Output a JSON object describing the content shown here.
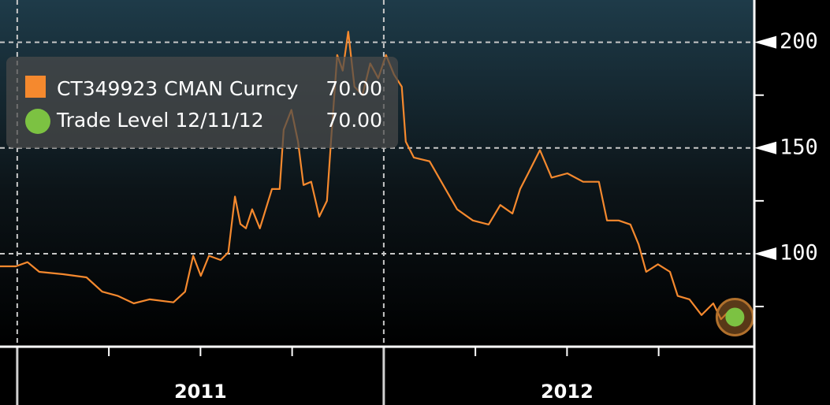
{
  "chart_data": {
    "type": "line",
    "series": [
      {
        "name": "CT349923 CMAN Curncy",
        "color": "#f5892e",
        "last_value_label": "70.00",
        "x": [
          2010.953,
          2010.996,
          2011.028,
          2011.06,
          2011.125,
          2011.189,
          2011.232,
          2011.275,
          2011.318,
          2011.361,
          2011.426,
          2011.458,
          2011.48,
          2011.501,
          2011.523,
          2011.555,
          2011.576,
          2011.594,
          2011.609,
          2011.624,
          2011.641,
          2011.662,
          2011.695,
          2011.716,
          2011.727,
          2011.748,
          2011.766,
          2011.781,
          2011.802,
          2011.824,
          2011.845,
          2011.856,
          2011.873,
          2011.888,
          2011.903,
          2011.92,
          2011.942,
          2011.963,
          2011.985,
          2012.006,
          2012.028,
          2012.049,
          2012.06,
          2012.082,
          2012.125,
          2012.157,
          2012.2,
          2012.243,
          2012.286,
          2012.318,
          2012.351,
          2012.372,
          2012.394,
          2012.426,
          2012.458,
          2012.501,
          2012.544,
          2012.587,
          2012.609,
          2012.641,
          2012.673,
          2012.695,
          2012.716,
          2012.748,
          2012.781,
          2012.802,
          2012.834,
          2012.867,
          2012.899,
          2012.92,
          2012.942,
          2012.953
        ],
        "values": [
          94,
          94,
          96,
          91.4,
          90.3,
          88.8,
          82,
          80,
          76.5,
          78.4,
          77,
          82,
          99,
          89.5,
          99,
          97,
          100.7,
          127,
          114,
          112,
          121,
          112,
          130.6,
          130.6,
          158.6,
          168,
          153,
          132.5,
          134,
          117.5,
          125,
          153,
          194,
          186.6,
          205,
          179,
          175,
          190,
          183,
          194,
          184.7,
          179,
          153,
          145.5,
          143.7,
          134,
          121,
          115.7,
          113.8,
          123,
          119,
          130.6,
          138,
          149,
          136,
          138,
          134,
          134,
          115.7,
          115.7,
          113.8,
          104.5,
          91.4,
          95,
          91.4,
          80,
          78.4,
          71,
          76.5,
          69,
          72.8,
          70
        ]
      }
    ],
    "trade_level": {
      "name": "Trade Level 12/11/12",
      "color": "#7cc242",
      "x": 2012.958,
      "value": 70,
      "value_label": "70.00"
    },
    "xlim": [
      2010.953,
      2013.011
    ],
    "xticks": [
      {
        "value": 2011.5,
        "label": "2011"
      },
      {
        "value": 2012.5,
        "label": "2012"
      }
    ],
    "xgrid": [
      2011,
      2012
    ],
    "x_minor_ticks": [
      2011.25,
      2011.5,
      2011.75,
      2012.25,
      2012.5,
      2012.75
    ],
    "ylim": [
      56,
      220
    ],
    "yticks": [
      100,
      150,
      200
    ],
    "y_minor_ticks": [
      75,
      125,
      175
    ],
    "grid": true
  }
}
